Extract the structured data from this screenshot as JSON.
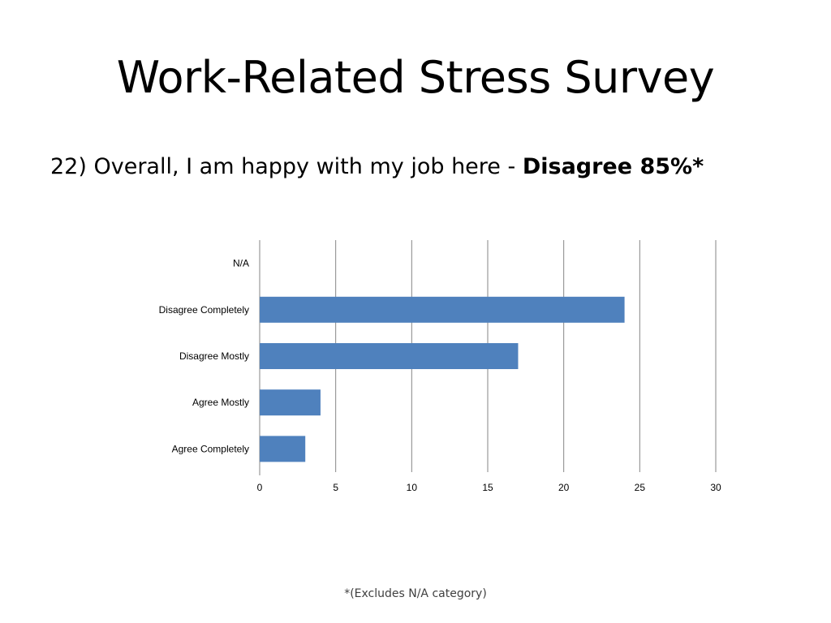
{
  "slide": {
    "title": "Work-Related Stress Survey",
    "subtitle_text": "22) Overall, I am happy with my job here - ",
    "subtitle_emphasis": "Disagree 85%*",
    "footnote": "*(Excludes N/A category)"
  },
  "colors": {
    "bar": "#4F81BD",
    "gridline": "#868686",
    "text": "#000000"
  },
  "chart_data": {
    "type": "bar",
    "orientation": "horizontal",
    "categories": [
      "N/A",
      "Disagree Completely",
      "Disagree Mostly",
      "Agree Mostly",
      "Agree Completely"
    ],
    "values": [
      0,
      24,
      17,
      4,
      3
    ],
    "xlim": [
      0,
      30
    ],
    "xticks": [
      "0",
      "5",
      "10",
      "15",
      "20",
      "25",
      "30"
    ],
    "grid": true,
    "legend": "none",
    "title": "",
    "xlabel": "",
    "ylabel": ""
  }
}
